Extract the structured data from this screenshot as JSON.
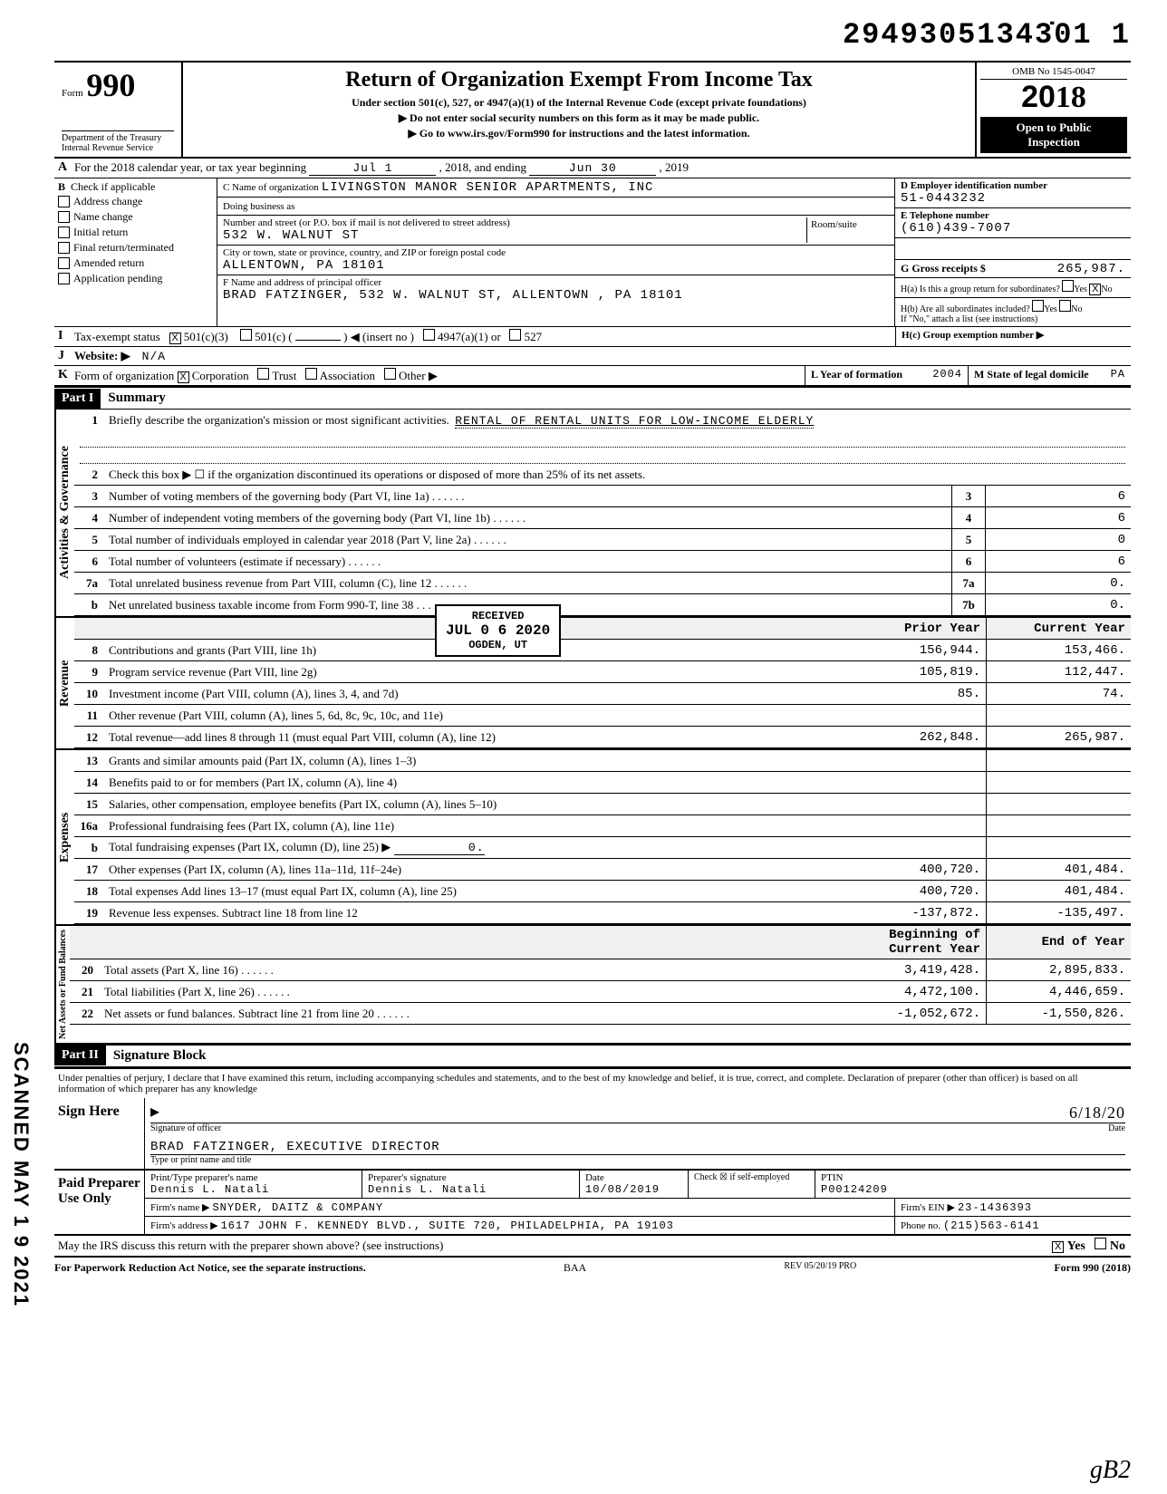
{
  "doc_number": "29493051343̇01  1",
  "header": {
    "form_label": "Form",
    "form_num": "990",
    "dept1": "Department of the Treasury",
    "dept2": "Internal Revenue Service",
    "title": "Return of Organization Exempt From Income Tax",
    "subtitle": "Under section 501(c), 527, or 4947(a)(1) of the Internal Revenue Code (except private foundations)",
    "note1": "▶ Do not enter social security numbers on this form as it may be made public.",
    "note2": "▶ Go to www.irs.gov/Form990 for instructions and the latest information.",
    "omb": "OMB No 1545-0047",
    "year": "2018",
    "open1": "Open to Public",
    "open2": "Inspection"
  },
  "lineA": {
    "label": "A",
    "text1": "For the 2018 calendar year, or tax year beginning",
    "begin": "Jul 1",
    "text2": ", 2018, and ending",
    "end": "Jun 30",
    "text3": ", 2019"
  },
  "blockB": {
    "label": "B",
    "check_label": "Check if applicable",
    "checks": [
      "Address change",
      "Name change",
      "Initial return",
      "Final return/terminated",
      "Amended return",
      "Application pending"
    ],
    "c_label": "C Name of organization",
    "c_val": "LIVINGSTON MANOR SENIOR APARTMENTS, INC",
    "dba_label": "Doing business as",
    "street_label": "Number and street (or P.O. box if mail is not delivered to street address)",
    "room_label": "Room/suite",
    "street_val": "532 W. WALNUT ST",
    "city_label": "City or town, state or province, country, and ZIP or foreign postal code",
    "city_val": "ALLENTOWN, PA 18101",
    "f_label": "F Name and address of principal officer",
    "f_val": "BRAD FATZINGER, 532 W. WALNUT ST, ALLENTOWN , PA 18101",
    "d_label": "D Employer identification number",
    "d_val": "51-0443232",
    "e_label": "E Telephone number",
    "e_val": "(610)439-7007",
    "g_label": "G Gross receipts $",
    "g_val": "265,987.",
    "ha_label": "H(a) Is this a group return for subordinates?",
    "ha_yes": "Yes",
    "ha_no": "No",
    "hb_label": "H(b) Are all subordinates included?",
    "hb_note": "If \"No,\" attach a list (see instructions)",
    "hc_label": "H(c) Group exemption number ▶"
  },
  "lineI": {
    "label": "I",
    "text": "Tax-exempt status",
    "opt1": "501(c)(3)",
    "opt2": "501(c) (",
    "opt2b": ") ◀ (insert no )",
    "opt3": "4947(a)(1) or",
    "opt4": "527"
  },
  "lineJ": {
    "label": "J",
    "text": "Website: ▶",
    "val": "N/A"
  },
  "lineK": {
    "label": "K",
    "text": "Form of organization",
    "opts": [
      "Corporation",
      "Trust",
      "Association",
      "Other ▶"
    ],
    "l_label": "L Year of formation",
    "l_val": "2004",
    "m_label": "M State of legal domicile",
    "m_val": "PA"
  },
  "part1": {
    "hdr": "Part I",
    "title": "Summary",
    "mission_label": "Briefly describe the organization's mission or most significant activities.",
    "mission": "RENTAL OF RENTAL UNITS FOR LOW-INCOME ELDERLY",
    "line2": "Check this box ▶ ☐ if the organization discontinued its operations or disposed of more than 25% of its net assets.",
    "gov_lines": [
      {
        "n": "3",
        "d": "Number of voting members of the governing body (Part VI, line 1a)",
        "box": "3",
        "v": "6"
      },
      {
        "n": "4",
        "d": "Number of independent voting members of the governing body (Part VI, line 1b)",
        "box": "4",
        "v": "6"
      },
      {
        "n": "5",
        "d": "Total number of individuals employed in calendar year 2018 (Part V, line 2a)",
        "box": "5",
        "v": "0"
      },
      {
        "n": "6",
        "d": "Total number of volunteers (estimate if necessary)",
        "box": "6",
        "v": "6"
      },
      {
        "n": "7a",
        "d": "Total unrelated business revenue from Part VIII, column (C), line 12",
        "box": "7a",
        "v": "0."
      },
      {
        "n": "b",
        "d": "Net unrelated business taxable income from Form 990-T, line 38",
        "box": "7b",
        "v": "0."
      }
    ],
    "col_prior": "Prior Year",
    "col_current": "Current Year",
    "rev_lines": [
      {
        "n": "8",
        "d": "Contributions and grants (Part VIII, line 1h)",
        "p": "156,944.",
        "c": "153,466."
      },
      {
        "n": "9",
        "d": "Program service revenue (Part VIII, line 2g)",
        "p": "105,819.",
        "c": "112,447."
      },
      {
        "n": "10",
        "d": "Investment income (Part VIII, column (A), lines 3, 4, and 7d)",
        "p": "85.",
        "c": "74."
      },
      {
        "n": "11",
        "d": "Other revenue (Part VIII, column (A), lines 5, 6d, 8c, 9c, 10c, and 11e)",
        "p": "",
        "c": ""
      },
      {
        "n": "12",
        "d": "Total revenue—add lines 8 through 11 (must equal Part VIII, column (A), line 12)",
        "p": "262,848.",
        "c": "265,987."
      }
    ],
    "exp_lines": [
      {
        "n": "13",
        "d": "Grants and similar amounts paid (Part IX, column (A), lines 1–3)",
        "p": "",
        "c": ""
      },
      {
        "n": "14",
        "d": "Benefits paid to or for members (Part IX, column (A), line 4)",
        "p": "",
        "c": ""
      },
      {
        "n": "15",
        "d": "Salaries, other compensation, employee benefits (Part IX, column (A), lines 5–10)",
        "p": "",
        "c": ""
      },
      {
        "n": "16a",
        "d": "Professional fundraising fees (Part IX, column (A), line 11e)",
        "p": "",
        "c": ""
      },
      {
        "n": "b",
        "d": "Total fundraising expenses (Part IX, column (D), line 25) ▶",
        "p": "",
        "c": "",
        "inline": "0."
      },
      {
        "n": "17",
        "d": "Other expenses (Part IX, column (A), lines 11a–11d, 11f–24e)",
        "p": "400,720.",
        "c": "401,484."
      },
      {
        "n": "18",
        "d": "Total expenses  Add lines 13–17 (must equal Part IX, column (A), line 25)",
        "p": "400,720.",
        "c": "401,484."
      },
      {
        "n": "19",
        "d": "Revenue less expenses. Subtract line 18 from line 12",
        "p": "-137,872.",
        "c": "-135,497."
      }
    ],
    "col_begin": "Beginning of Current Year",
    "col_end": "End of Year",
    "net_lines": [
      {
        "n": "20",
        "d": "Total assets (Part X, line 16)",
        "p": "3,419,428.",
        "c": "2,895,833."
      },
      {
        "n": "21",
        "d": "Total liabilities (Part X, line 26)",
        "p": "4,472,100.",
        "c": "4,446,659."
      },
      {
        "n": "22",
        "d": "Net assets or fund balances. Subtract line 21 from line 20",
        "p": "-1,052,672.",
        "c": "-1,550,826."
      }
    ],
    "vert_gov": "Activities & Governance",
    "vert_rev": "Revenue",
    "vert_exp": "Expenses",
    "vert_net": "Net Assets or\nFund Balances"
  },
  "part2": {
    "hdr": "Part II",
    "title": "Signature Block",
    "decl": "Under penalties of perjury, I declare that I have examined this return, including accompanying schedules and statements, and to the best of my knowledge and belief, it is true, correct, and complete. Declaration of preparer (other than officer) is based on all information of which preparer has any knowledge",
    "sign_lbl": "Sign Here",
    "sig_caption": "Signature of officer",
    "date_caption": "Date",
    "sig_date": "6/18/20",
    "name": "BRAD FATZINGER, EXECUTIVE DIRECTOR",
    "name_caption": "Type or print name and title",
    "paid_lbl": "Paid Preparer Use Only",
    "prep_name_lbl": "Print/Type preparer's name",
    "prep_name": "Dennis L. Natali",
    "prep_sig_lbl": "Preparer's signature",
    "prep_sig": "Dennis L. Natali",
    "prep_date_lbl": "Date",
    "prep_date": "10/08/2019",
    "prep_check_lbl": "Check ☒ if self-employed",
    "ptin_lbl": "PTIN",
    "ptin": "P00124209",
    "firm_name_lbl": "Firm's name ▶",
    "firm_name": "SNYDER, DAITZ & COMPANY",
    "firm_ein_lbl": "Firm's EIN ▶",
    "firm_ein": "23-1436393",
    "firm_addr_lbl": "Firm's address ▶",
    "firm_addr": "1617 JOHN F. KENNEDY BLVD., SUITE 720, PHILADELPHIA, PA 19103",
    "firm_phone_lbl": "Phone no.",
    "firm_phone": "(215)563-6141",
    "discuss": "May the IRS discuss this return with the preparer shown above? (see instructions)",
    "discuss_yes": "Yes",
    "discuss_no": "No"
  },
  "footer": {
    "left": "For Paperwork Reduction Act Notice, see the separate instructions.",
    "mid": "BAA",
    "rev": "REV 05/20/19 PRO",
    "right": "Form 990 (2018)"
  },
  "side_stamp": "SCANNED MAY 1 9 2021",
  "recv_stamp": {
    "l1": "RECEIVED",
    "l2": "JUL 0 6 2020",
    "l3": "OGDEN, UT"
  },
  "initials": "gB2"
}
